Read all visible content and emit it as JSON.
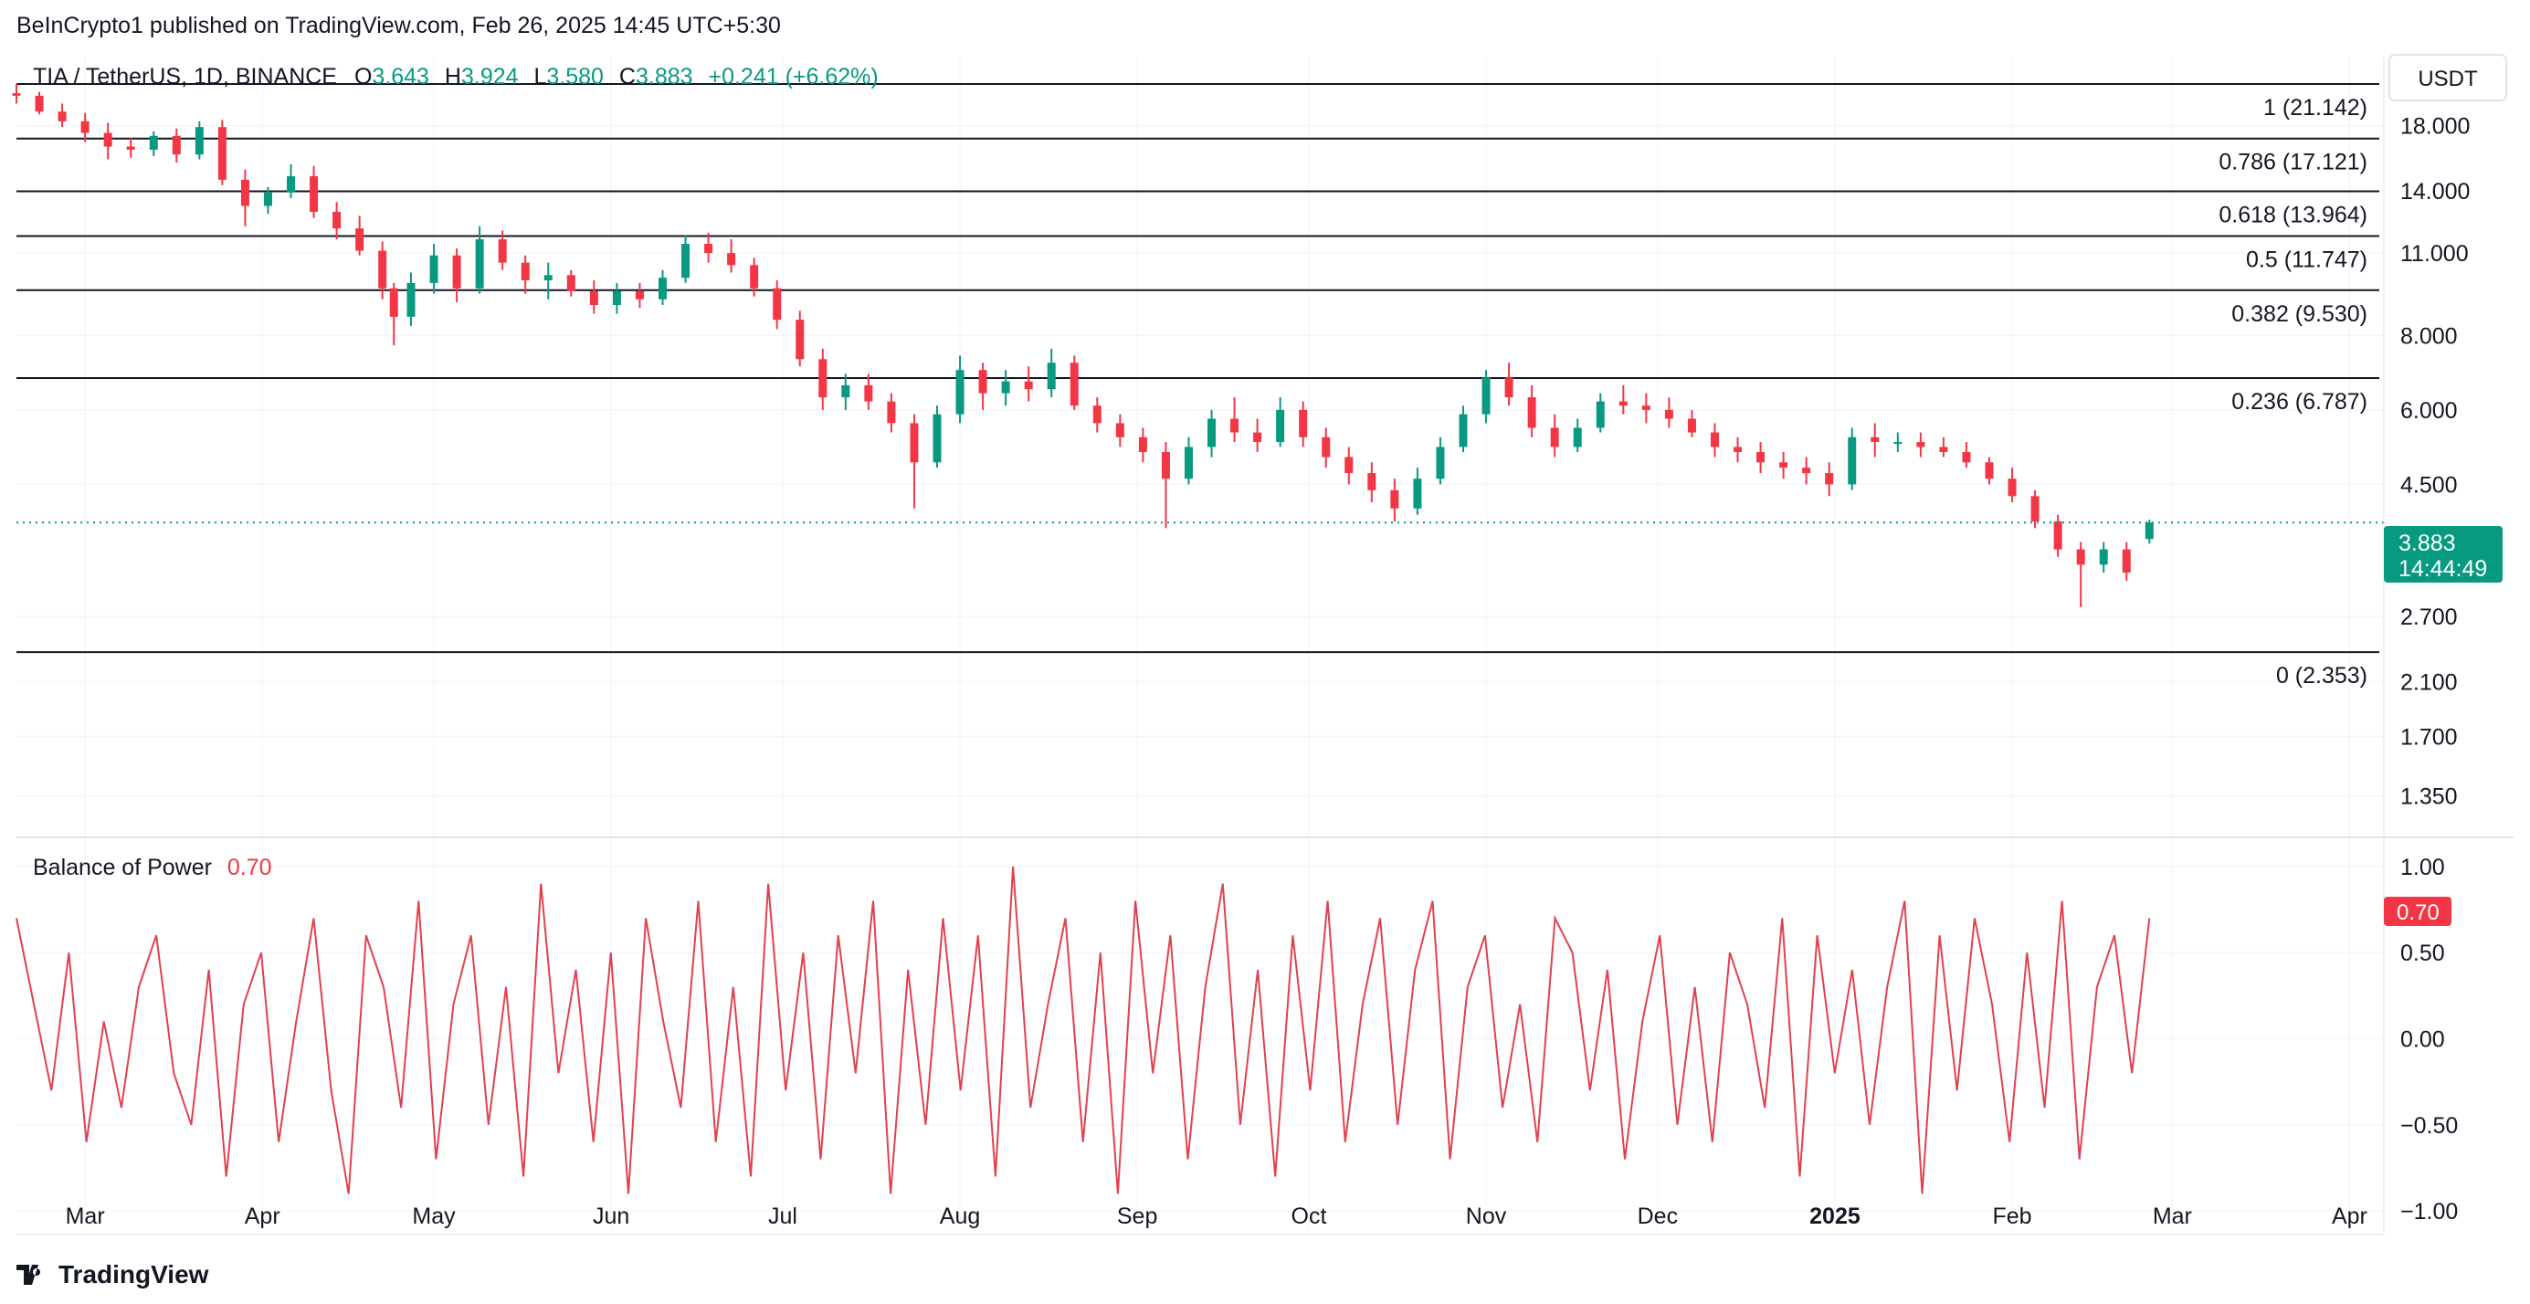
{
  "header": {
    "text": "BeInCrypto1 published on TradingView.com, Feb 26, 2025 14:45 UTC+5:30"
  },
  "legend": {
    "symbol": "TIA / TetherUS, 1D, BINANCE",
    "o_label": "O",
    "o": "3.643",
    "h_label": "H",
    "h": "3.924",
    "l_label": "L",
    "l": "3.580",
    "c_label": "C",
    "c": "3.883",
    "change": "+0.241 (+6.62%)"
  },
  "currency": "USDT",
  "last_price": {
    "value": "3.883",
    "countdown": "14:44:49"
  },
  "indicator": {
    "name": "Balance of Power",
    "value": "0.70"
  },
  "brand": "TradingView",
  "colors": {
    "up": "#089981",
    "down": "#f23645",
    "bop": "#e0414f",
    "text": "#131722",
    "grid": "#f0f3fa"
  },
  "chart_data": [
    {
      "type": "candlestick",
      "title": "TIA / TetherUS, 1D, BINANCE",
      "y_scale": "log",
      "ylim": [
        1.2,
        23.5
      ],
      "y_ticks": [
        {
          "v": 18.0,
          "label": "18.000"
        },
        {
          "v": 14.0,
          "label": "14.000"
        },
        {
          "v": 11.0,
          "label": "11.000"
        },
        {
          "v": 8.0,
          "label": "8.000"
        },
        {
          "v": 6.0,
          "label": "6.000"
        },
        {
          "v": 4.5,
          "label": "4.500"
        },
        {
          "v": 2.7,
          "label": "2.700"
        },
        {
          "v": 2.1,
          "label": "2.100"
        },
        {
          "v": 1.7,
          "label": "1.700"
        },
        {
          "v": 1.35,
          "label": "1.350"
        }
      ],
      "x_range": [
        "2024-02-18",
        "2025-04-07"
      ],
      "x_ticks": [
        {
          "date": "2024-03-01",
          "label": "Mar"
        },
        {
          "date": "2024-04-01",
          "label": "Apr"
        },
        {
          "date": "2024-05-01",
          "label": "May"
        },
        {
          "date": "2024-06-01",
          "label": "Jun"
        },
        {
          "date": "2024-07-01",
          "label": "Jul"
        },
        {
          "date": "2024-08-01",
          "label": "Aug"
        },
        {
          "date": "2024-09-01",
          "label": "Sep"
        },
        {
          "date": "2024-10-01",
          "label": "Oct"
        },
        {
          "date": "2024-11-01",
          "label": "Nov"
        },
        {
          "date": "2024-12-01",
          "label": "Dec"
        },
        {
          "date": "2025-01-01",
          "label": "2025",
          "bold": true
        },
        {
          "date": "2025-02-01",
          "label": "Feb"
        },
        {
          "date": "2025-03-01",
          "label": "Mar"
        },
        {
          "date": "2025-04-01",
          "label": "Apr"
        }
      ],
      "fib_levels": [
        {
          "ratio": "1",
          "price": 21.142,
          "label": "1 (21.142)"
        },
        {
          "ratio": "0.786",
          "price": 17.121,
          "label": "0.786 (17.121)"
        },
        {
          "ratio": "0.618",
          "price": 13.964,
          "label": "0.618 (13.964)"
        },
        {
          "ratio": "0.5",
          "price": 11.747,
          "label": "0.5 (11.747)"
        },
        {
          "ratio": "0.382",
          "price": 9.53,
          "label": "0.382 (9.530)"
        },
        {
          "ratio": "0.236",
          "price": 6.787,
          "label": "0.236 (6.787)"
        },
        {
          "ratio": "0",
          "price": 2.353,
          "label": "0 (2.353)"
        }
      ],
      "current_price": 3.883,
      "ohlc": [
        {
          "date": "2024-02-18",
          "o": 20.4,
          "h": 21.14,
          "l": 19.6,
          "c": 20.2
        },
        {
          "date": "2024-02-22",
          "o": 20.2,
          "h": 20.5,
          "l": 18.8,
          "c": 19.0
        },
        {
          "date": "2024-02-26",
          "o": 19.0,
          "h": 19.6,
          "l": 17.9,
          "c": 18.3
        },
        {
          "date": "2024-03-01",
          "o": 18.3,
          "h": 18.9,
          "l": 16.9,
          "c": 17.5
        },
        {
          "date": "2024-03-05",
          "o": 17.5,
          "h": 18.2,
          "l": 15.8,
          "c": 16.6
        },
        {
          "date": "2024-03-09",
          "o": 16.6,
          "h": 17.2,
          "l": 15.9,
          "c": 16.4
        },
        {
          "date": "2024-03-13",
          "o": 16.4,
          "h": 17.6,
          "l": 16.0,
          "c": 17.3
        },
        {
          "date": "2024-03-17",
          "o": 17.3,
          "h": 17.8,
          "l": 15.6,
          "c": 16.1
        },
        {
          "date": "2024-03-21",
          "o": 16.1,
          "h": 18.3,
          "l": 15.8,
          "c": 17.9
        },
        {
          "date": "2024-03-25",
          "o": 17.9,
          "h": 18.4,
          "l": 14.3,
          "c": 14.6
        },
        {
          "date": "2024-03-29",
          "o": 14.6,
          "h": 15.2,
          "l": 12.2,
          "c": 13.2
        },
        {
          "date": "2024-04-02",
          "o": 13.2,
          "h": 14.2,
          "l": 12.8,
          "c": 13.9
        },
        {
          "date": "2024-04-06",
          "o": 13.9,
          "h": 15.5,
          "l": 13.6,
          "c": 14.8
        },
        {
          "date": "2024-04-10",
          "o": 14.8,
          "h": 15.4,
          "l": 12.6,
          "c": 12.9
        },
        {
          "date": "2024-04-14",
          "o": 12.9,
          "h": 13.4,
          "l": 11.6,
          "c": 12.1
        },
        {
          "date": "2024-04-18",
          "o": 12.1,
          "h": 12.7,
          "l": 10.9,
          "c": 11.1
        },
        {
          "date": "2024-04-22",
          "o": 11.1,
          "h": 11.5,
          "l": 9.2,
          "c": 9.6
        },
        {
          "date": "2024-04-24",
          "o": 9.6,
          "h": 9.8,
          "l": 7.7,
          "c": 8.6
        },
        {
          "date": "2024-04-27",
          "o": 8.6,
          "h": 10.2,
          "l": 8.3,
          "c": 9.8
        },
        {
          "date": "2024-05-01",
          "o": 9.8,
          "h": 11.4,
          "l": 9.4,
          "c": 10.9
        },
        {
          "date": "2024-05-05",
          "o": 10.9,
          "h": 11.2,
          "l": 9.1,
          "c": 9.6
        },
        {
          "date": "2024-05-09",
          "o": 9.6,
          "h": 12.2,
          "l": 9.4,
          "c": 11.6
        },
        {
          "date": "2024-05-13",
          "o": 11.6,
          "h": 12.0,
          "l": 10.3,
          "c": 10.6
        },
        {
          "date": "2024-05-17",
          "o": 10.6,
          "h": 10.9,
          "l": 9.4,
          "c": 9.9
        },
        {
          "date": "2024-05-21",
          "o": 9.9,
          "h": 10.6,
          "l": 9.2,
          "c": 10.1
        },
        {
          "date": "2024-05-25",
          "o": 10.1,
          "h": 10.3,
          "l": 9.3,
          "c": 9.5
        },
        {
          "date": "2024-05-29",
          "o": 9.5,
          "h": 9.9,
          "l": 8.7,
          "c": 9.0
        },
        {
          "date": "2024-06-02",
          "o": 9.0,
          "h": 9.8,
          "l": 8.7,
          "c": 9.5
        },
        {
          "date": "2024-06-06",
          "o": 9.5,
          "h": 9.8,
          "l": 8.9,
          "c": 9.2
        },
        {
          "date": "2024-06-10",
          "o": 9.2,
          "h": 10.3,
          "l": 9.0,
          "c": 10.0
        },
        {
          "date": "2024-06-14",
          "o": 10.0,
          "h": 11.8,
          "l": 9.8,
          "c": 11.4
        },
        {
          "date": "2024-06-18",
          "o": 11.4,
          "h": 11.9,
          "l": 10.6,
          "c": 11.0
        },
        {
          "date": "2024-06-22",
          "o": 11.0,
          "h": 11.6,
          "l": 10.2,
          "c": 10.5
        },
        {
          "date": "2024-06-26",
          "o": 10.5,
          "h": 10.8,
          "l": 9.3,
          "c": 9.6
        },
        {
          "date": "2024-06-30",
          "o": 9.6,
          "h": 9.9,
          "l": 8.2,
          "c": 8.5
        },
        {
          "date": "2024-07-04",
          "o": 8.5,
          "h": 8.8,
          "l": 7.1,
          "c": 7.3
        },
        {
          "date": "2024-07-08",
          "o": 7.3,
          "h": 7.6,
          "l": 6.0,
          "c": 6.3
        },
        {
          "date": "2024-07-12",
          "o": 6.3,
          "h": 6.9,
          "l": 6.0,
          "c": 6.6
        },
        {
          "date": "2024-07-16",
          "o": 6.6,
          "h": 6.9,
          "l": 6.0,
          "c": 6.2
        },
        {
          "date": "2024-07-20",
          "o": 6.2,
          "h": 6.4,
          "l": 5.5,
          "c": 5.7
        },
        {
          "date": "2024-07-24",
          "o": 5.7,
          "h": 5.9,
          "l": 4.1,
          "c": 4.9
        },
        {
          "date": "2024-07-28",
          "o": 4.9,
          "h": 6.1,
          "l": 4.8,
          "c": 5.9
        },
        {
          "date": "2024-08-01",
          "o": 5.9,
          "h": 7.4,
          "l": 5.7,
          "c": 7.0
        },
        {
          "date": "2024-08-05",
          "o": 7.0,
          "h": 7.2,
          "l": 6.0,
          "c": 6.4
        },
        {
          "date": "2024-08-09",
          "o": 6.4,
          "h": 7.0,
          "l": 6.1,
          "c": 6.7
        },
        {
          "date": "2024-08-13",
          "o": 6.7,
          "h": 7.1,
          "l": 6.2,
          "c": 6.5
        },
        {
          "date": "2024-08-17",
          "o": 6.5,
          "h": 7.6,
          "l": 6.3,
          "c": 7.2
        },
        {
          "date": "2024-08-21",
          "o": 7.2,
          "h": 7.4,
          "l": 6.0,
          "c": 6.1
        },
        {
          "date": "2024-08-25",
          "o": 6.1,
          "h": 6.3,
          "l": 5.5,
          "c": 5.7
        },
        {
          "date": "2024-08-29",
          "o": 5.7,
          "h": 5.9,
          "l": 5.2,
          "c": 5.4
        },
        {
          "date": "2024-09-02",
          "o": 5.4,
          "h": 5.6,
          "l": 4.9,
          "c": 5.1
        },
        {
          "date": "2024-09-06",
          "o": 5.1,
          "h": 5.3,
          "l": 3.8,
          "c": 4.6
        },
        {
          "date": "2024-09-10",
          "o": 4.6,
          "h": 5.4,
          "l": 4.5,
          "c": 5.2
        },
        {
          "date": "2024-09-14",
          "o": 5.2,
          "h": 6.0,
          "l": 5.0,
          "c": 5.8
        },
        {
          "date": "2024-09-18",
          "o": 5.8,
          "h": 6.3,
          "l": 5.3,
          "c": 5.5
        },
        {
          "date": "2024-09-22",
          "o": 5.5,
          "h": 5.8,
          "l": 5.1,
          "c": 5.3
        },
        {
          "date": "2024-09-26",
          "o": 5.3,
          "h": 6.3,
          "l": 5.2,
          "c": 6.0
        },
        {
          "date": "2024-09-30",
          "o": 6.0,
          "h": 6.2,
          "l": 5.2,
          "c": 5.4
        },
        {
          "date": "2024-10-04",
          "o": 5.4,
          "h": 5.6,
          "l": 4.8,
          "c": 5.0
        },
        {
          "date": "2024-10-08",
          "o": 5.0,
          "h": 5.2,
          "l": 4.5,
          "c": 4.7
        },
        {
          "date": "2024-10-12",
          "o": 4.7,
          "h": 4.9,
          "l": 4.2,
          "c": 4.4
        },
        {
          "date": "2024-10-16",
          "o": 4.4,
          "h": 4.6,
          "l": 3.9,
          "c": 4.1
        },
        {
          "date": "2024-10-20",
          "o": 4.1,
          "h": 4.8,
          "l": 4.0,
          "c": 4.6
        },
        {
          "date": "2024-10-24",
          "o": 4.6,
          "h": 5.4,
          "l": 4.5,
          "c": 5.2
        },
        {
          "date": "2024-10-28",
          "o": 5.2,
          "h": 6.1,
          "l": 5.1,
          "c": 5.9
        },
        {
          "date": "2024-11-01",
          "o": 5.9,
          "h": 7.0,
          "l": 5.7,
          "c": 6.8
        },
        {
          "date": "2024-11-05",
          "o": 6.8,
          "h": 7.2,
          "l": 6.1,
          "c": 6.3
        },
        {
          "date": "2024-11-09",
          "o": 6.3,
          "h": 6.6,
          "l": 5.4,
          "c": 5.6
        },
        {
          "date": "2024-11-13",
          "o": 5.6,
          "h": 5.9,
          "l": 5.0,
          "c": 5.2
        },
        {
          "date": "2024-11-17",
          "o": 5.2,
          "h": 5.8,
          "l": 5.1,
          "c": 5.6
        },
        {
          "date": "2024-11-21",
          "o": 5.6,
          "h": 6.4,
          "l": 5.5,
          "c": 6.2
        },
        {
          "date": "2024-11-25",
          "o": 6.2,
          "h": 6.6,
          "l": 5.9,
          "c": 6.1
        },
        {
          "date": "2024-11-29",
          "o": 6.1,
          "h": 6.4,
          "l": 5.7,
          "c": 6.0
        },
        {
          "date": "2024-12-03",
          "o": 6.0,
          "h": 6.3,
          "l": 5.6,
          "c": 5.8
        },
        {
          "date": "2024-12-07",
          "o": 5.8,
          "h": 6.0,
          "l": 5.4,
          "c": 5.5
        },
        {
          "date": "2024-12-11",
          "o": 5.5,
          "h": 5.7,
          "l": 5.0,
          "c": 5.2
        },
        {
          "date": "2024-12-15",
          "o": 5.2,
          "h": 5.4,
          "l": 4.9,
          "c": 5.1
        },
        {
          "date": "2024-12-19",
          "o": 5.1,
          "h": 5.3,
          "l": 4.7,
          "c": 4.9
        },
        {
          "date": "2024-12-23",
          "o": 4.9,
          "h": 5.1,
          "l": 4.6,
          "c": 4.8
        },
        {
          "date": "2024-12-27",
          "o": 4.8,
          "h": 5.0,
          "l": 4.5,
          "c": 4.7
        },
        {
          "date": "2024-12-31",
          "o": 4.7,
          "h": 4.9,
          "l": 4.3,
          "c": 4.5
        },
        {
          "date": "2025-01-04",
          "o": 4.5,
          "h": 5.6,
          "l": 4.4,
          "c": 5.4
        },
        {
          "date": "2025-01-08",
          "o": 5.4,
          "h": 5.7,
          "l": 5.0,
          "c": 5.3
        },
        {
          "date": "2025-01-12",
          "o": 5.3,
          "h": 5.5,
          "l": 5.1,
          "c": 5.3
        },
        {
          "date": "2025-01-16",
          "o": 5.3,
          "h": 5.5,
          "l": 5.0,
          "c": 5.2
        },
        {
          "date": "2025-01-20",
          "o": 5.2,
          "h": 5.4,
          "l": 5.0,
          "c": 5.1
        },
        {
          "date": "2025-01-24",
          "o": 5.1,
          "h": 5.3,
          "l": 4.8,
          "c": 4.9
        },
        {
          "date": "2025-01-28",
          "o": 4.9,
          "h": 5.0,
          "l": 4.5,
          "c": 4.6
        },
        {
          "date": "2025-02-01",
          "o": 4.6,
          "h": 4.8,
          "l": 4.2,
          "c": 4.3
        },
        {
          "date": "2025-02-05",
          "o": 4.3,
          "h": 4.4,
          "l": 3.8,
          "c": 3.9
        },
        {
          "date": "2025-02-09",
          "o": 3.9,
          "h": 4.0,
          "l": 3.4,
          "c": 3.5
        },
        {
          "date": "2025-02-13",
          "o": 3.5,
          "h": 3.6,
          "l": 2.8,
          "c": 3.3
        },
        {
          "date": "2025-02-17",
          "o": 3.3,
          "h": 3.6,
          "l": 3.2,
          "c": 3.5
        },
        {
          "date": "2025-02-21",
          "o": 3.5,
          "h": 3.6,
          "l": 3.1,
          "c": 3.2
        },
        {
          "date": "2025-02-25",
          "o": 3.643,
          "h": 3.924,
          "l": 3.58,
          "c": 3.883
        }
      ]
    },
    {
      "type": "line",
      "title": "Balance of Power",
      "ylim": [
        -1.1,
        1.1
      ],
      "y_ticks": [
        {
          "v": 1.0,
          "label": "1.00"
        },
        {
          "v": 0.5,
          "label": "0.50"
        },
        {
          "v": 0.0,
          "label": "0.00"
        },
        {
          "v": -0.5,
          "label": "−0.50"
        },
        {
          "v": -1.0,
          "label": "−1.00"
        }
      ],
      "series": [
        {
          "values": [
            0.7,
            0.2,
            -0.3,
            0.5,
            -0.6,
            0.1,
            -0.4,
            0.3,
            0.6,
            -0.2,
            -0.5,
            0.4,
            -0.8,
            0.2,
            0.5,
            -0.6,
            0.1,
            0.7,
            -0.3,
            -0.9,
            0.6,
            0.3,
            -0.4,
            0.8,
            -0.7,
            0.2,
            0.6,
            -0.5,
            0.3,
            -0.8,
            0.9,
            -0.2,
            0.4,
            -0.6,
            0.5,
            -0.9,
            0.7,
            0.1,
            -0.4,
            0.8,
            -0.6,
            0.3,
            -0.8,
            0.9,
            -0.3,
            0.5,
            -0.7,
            0.6,
            -0.2,
            0.8,
            -0.9,
            0.4,
            -0.5,
            0.7,
            -0.3,
            0.6,
            -0.8,
            1.0,
            -0.4,
            0.2,
            0.7,
            -0.6,
            0.5,
            -0.9,
            0.8,
            -0.2,
            0.6,
            -0.7,
            0.3,
            0.9,
            -0.5,
            0.4,
            -0.8,
            0.6,
            -0.3,
            0.8,
            -0.6,
            0.2,
            0.7,
            -0.5,
            0.4,
            0.8,
            -0.7,
            0.3,
            0.6,
            -0.4,
            0.2,
            -0.6,
            0.7,
            0.5,
            -0.3,
            0.4,
            -0.7,
            0.1,
            0.6,
            -0.5,
            0.3,
            -0.6,
            0.5,
            0.2,
            -0.4,
            0.7,
            -0.8,
            0.6,
            -0.2,
            0.4,
            -0.5,
            0.3,
            0.8,
            -0.9,
            0.6,
            -0.3,
            0.7,
            0.2,
            -0.6,
            0.5,
            -0.4,
            0.8,
            -0.7,
            0.3,
            0.6,
            -0.2,
            0.7
          ]
        }
      ]
    }
  ]
}
